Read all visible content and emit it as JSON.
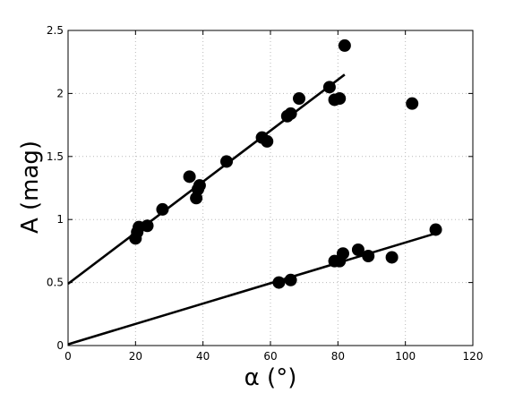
{
  "chart_data": {
    "type": "scatter",
    "title": "",
    "xlabel": "α (°)",
    "ylabel": "A (mag)",
    "xlim": [
      0,
      120
    ],
    "ylim": [
      0,
      2.5
    ],
    "grid": true,
    "x_ticks": [
      0,
      20,
      40,
      60,
      80,
      100,
      120
    ],
    "x_tick_labels": [
      "0",
      "20",
      "40",
      "60",
      "80",
      "100",
      "120"
    ],
    "y_ticks": [
      0,
      0.5,
      1,
      1.5,
      2,
      2.5
    ],
    "y_tick_labels": [
      "0",
      "0.5",
      "1",
      "1.5",
      "2",
      "2.5"
    ],
    "series": [
      {
        "points": [
          [
            20,
            0.85
          ],
          [
            20.5,
            0.9
          ],
          [
            21,
            0.94
          ],
          [
            23.5,
            0.95
          ],
          [
            28,
            1.08
          ],
          [
            36,
            1.34
          ],
          [
            38,
            1.17
          ],
          [
            39,
            1.27
          ],
          [
            38.5,
            1.24
          ],
          [
            47,
            1.46
          ],
          [
            57.5,
            1.65
          ],
          [
            59,
            1.62
          ],
          [
            65,
            1.82
          ],
          [
            66,
            1.84
          ],
          [
            68.5,
            1.96
          ],
          [
            77.5,
            2.05
          ],
          [
            79,
            1.95
          ],
          [
            80.5,
            1.96
          ],
          [
            82,
            2.38
          ],
          [
            102,
            1.92
          ]
        ],
        "fit": [
          [
            0,
            0.49
          ],
          [
            82,
            2.15
          ]
        ]
      },
      {
        "points": [
          [
            62.5,
            0.5
          ],
          [
            66,
            0.52
          ],
          [
            79,
            0.67
          ],
          [
            80.5,
            0.67
          ],
          [
            81.5,
            0.73
          ],
          [
            86,
            0.76
          ],
          [
            89,
            0.71
          ],
          [
            96,
            0.7
          ],
          [
            109,
            0.92
          ]
        ],
        "fit": [
          [
            0,
            0.01
          ],
          [
            109,
            0.89
          ]
        ]
      }
    ]
  }
}
